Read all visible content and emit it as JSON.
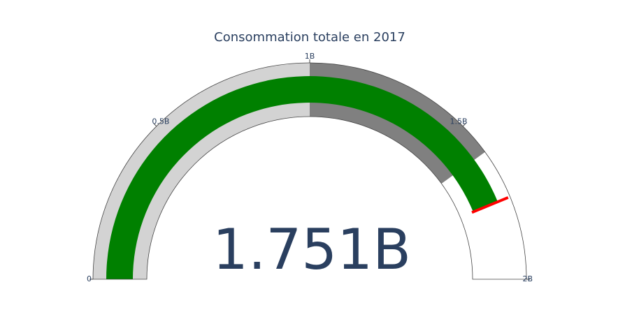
{
  "chart_data": {
    "type": "gauge",
    "title": "Consommation totale en 2017",
    "value": 1751000000,
    "value_label": "1.751B",
    "axis_range": [
      0,
      2000000000
    ],
    "ticks": [
      {
        "value": 0,
        "label": "0"
      },
      {
        "value": 500000000,
        "label": "0.5B"
      },
      {
        "value": 1000000000,
        "label": "1B"
      },
      {
        "value": 1500000000,
        "label": "1.5B"
      },
      {
        "value": 2000000000,
        "label": "2B"
      }
    ],
    "steps": [
      {
        "range": [
          0,
          1000000000
        ],
        "color": "#d3d3d3"
      },
      {
        "range": [
          1000000000,
          1600000000
        ],
        "color": "#808080"
      }
    ],
    "bar_color": "#008000",
    "threshold": {
      "value": 1751000000,
      "color": "#ff0000"
    }
  }
}
